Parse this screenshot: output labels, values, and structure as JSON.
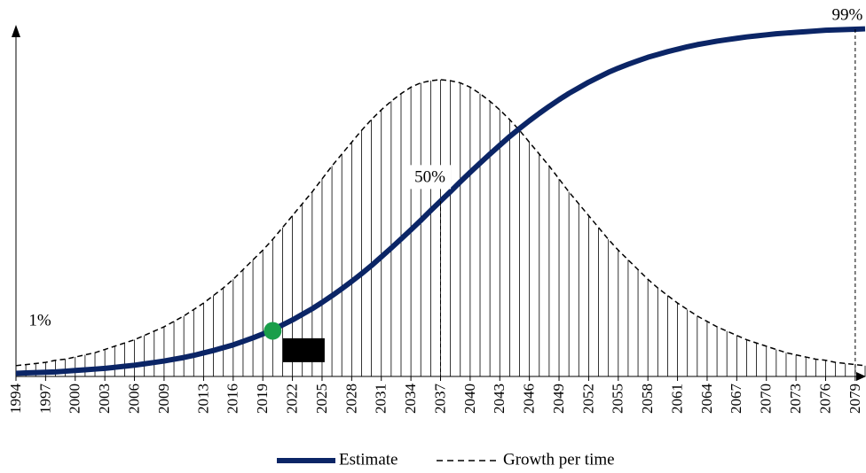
{
  "chart_data": {
    "type": "line",
    "x": [
      1994,
      1995,
      1996,
      1997,
      1998,
      1999,
      2000,
      2001,
      2002,
      2003,
      2004,
      2005,
      2006,
      2007,
      2008,
      2009,
      2010,
      2011,
      2012,
      2013,
      2014,
      2015,
      2016,
      2017,
      2018,
      2019,
      2020,
      2021,
      2022,
      2023,
      2024,
      2025,
      2026,
      2027,
      2028,
      2029,
      2030,
      2031,
      2032,
      2033,
      2034,
      2035,
      2036,
      2037,
      2038,
      2039,
      2040,
      2041,
      2042,
      2043,
      2044,
      2045,
      2046,
      2047,
      2048,
      2049,
      2050,
      2051,
      2052,
      2053,
      2054,
      2055,
      2056,
      2057,
      2058,
      2059,
      2060,
      2061,
      2062,
      2063,
      2064,
      2065,
      2066,
      2067,
      2068,
      2069,
      2070,
      2071,
      2072,
      2073,
      2074,
      2075,
      2076,
      2077,
      2078,
      2079,
      2080
    ],
    "series": [
      {
        "name": "Estimate",
        "color": "#0b2566",
        "values": [
          0.9,
          1.0,
          1.1,
          1.2,
          1.3,
          1.5,
          1.7,
          1.9,
          2.1,
          2.3,
          2.6,
          2.9,
          3.2,
          3.6,
          4.0,
          4.4,
          4.9,
          5.4,
          6.0,
          6.7,
          7.4,
          8.2,
          9.0,
          10.0,
          11.0,
          12.1,
          13.3,
          14.7,
          16.1,
          17.7,
          19.3,
          21.1,
          23.0,
          25.0,
          27.1,
          29.3,
          31.6,
          34.1,
          36.6,
          39.2,
          41.8,
          44.5,
          47.3,
          50.0,
          52.7,
          55.5,
          58.2,
          60.8,
          63.4,
          65.9,
          68.4,
          70.7,
          72.9,
          75.0,
          77.0,
          78.9,
          80.7,
          82.3,
          83.9,
          85.3,
          86.7,
          87.9,
          89.0,
          90.0,
          91.0,
          91.8,
          92.6,
          93.3,
          94.0,
          94.6,
          95.1,
          95.6,
          96.0,
          96.4,
          96.8,
          97.1,
          97.4,
          97.7,
          97.9,
          98.1,
          98.3,
          98.5,
          98.7,
          98.8,
          98.9,
          99.0,
          99.1
        ]
      },
      {
        "name": "Growth per time",
        "color": "#000000",
        "axis": "y2",
        "values": [
          0.1,
          0.11,
          0.12,
          0.13,
          0.15,
          0.16,
          0.18,
          0.2,
          0.22,
          0.25,
          0.28,
          0.31,
          0.34,
          0.38,
          0.42,
          0.46,
          0.51,
          0.56,
          0.62,
          0.68,
          0.75,
          0.82,
          0.9,
          0.99,
          1.08,
          1.17,
          1.27,
          1.38,
          1.49,
          1.6,
          1.71,
          1.83,
          1.95,
          2.06,
          2.17,
          2.28,
          2.38,
          2.47,
          2.55,
          2.62,
          2.68,
          2.72,
          2.74,
          2.75,
          2.74,
          2.72,
          2.68,
          2.62,
          2.55,
          2.47,
          2.38,
          2.28,
          2.17,
          2.06,
          1.95,
          1.83,
          1.71,
          1.6,
          1.49,
          1.38,
          1.27,
          1.17,
          1.08,
          0.99,
          0.9,
          0.82,
          0.75,
          0.68,
          0.62,
          0.56,
          0.51,
          0.46,
          0.42,
          0.38,
          0.34,
          0.31,
          0.28,
          0.25,
          0.22,
          0.2,
          0.18,
          0.16,
          0.15,
          0.13,
          0.12,
          0.11,
          0.1
        ]
      }
    ],
    "xlim": [
      1994,
      2080
    ],
    "xticks": [
      1994,
      1997,
      2000,
      2003,
      2006,
      2009,
      2013,
      2016,
      2019,
      2022,
      2025,
      2028,
      2031,
      2034,
      2037,
      2040,
      2043,
      2046,
      2049,
      2052,
      2055,
      2058,
      2061,
      2064,
      2067,
      2070,
      2073,
      2076,
      2079
    ],
    "ylim": [
      0,
      100
    ],
    "y2lim": [
      0,
      3.25
    ],
    "annotations": [
      {
        "label": "1%",
        "x": 1994,
        "value": 1
      },
      {
        "label": "13%",
        "x": 2020,
        "value": 13
      },
      {
        "label": "50%",
        "x": 2037,
        "value": 50
      },
      {
        "label": "99%",
        "x": 2079,
        "value": 99
      }
    ]
  }
}
